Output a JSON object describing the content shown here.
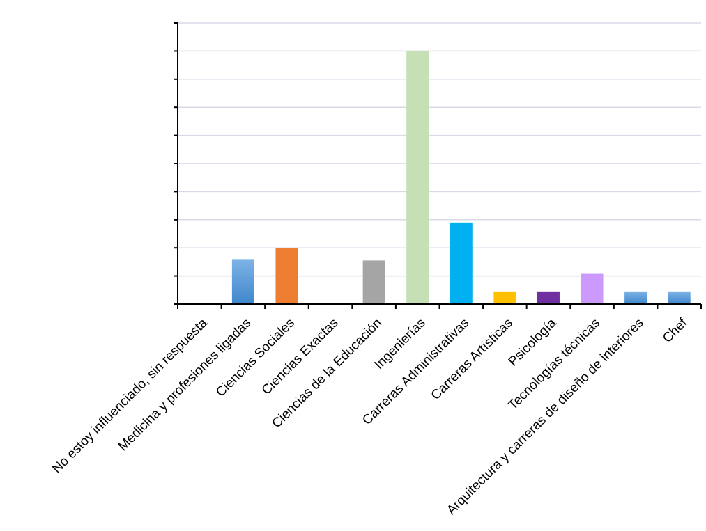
{
  "chart_data": {
    "type": "bar",
    "title": "",
    "xlabel": "",
    "ylabel": "",
    "ylim": [
      0,
      10
    ],
    "grid": true,
    "y_tick_labels_shown": false,
    "categories": [
      "No estoy influenciado, sin respuesta",
      "Medicina y profesiones ligadas",
      "Ciencias Sociales",
      "Ciencias Exactas",
      "Ciencias de la Educación",
      "Ingenierías",
      "Carreras Administrativas",
      "Carreras Artísticas",
      "Psicología",
      "Tecnologías técnicas",
      "Arquitectura y carreras de diseño de interiores",
      "Chef"
    ],
    "values": [
      0,
      1.6,
      2.0,
      0,
      1.55,
      9.0,
      2.9,
      0.45,
      0.45,
      1.1,
      0.45,
      0.45
    ],
    "colors": [
      "#5b9bd5",
      "#5b9bd5",
      "#ed7d31",
      "#a5a5a5",
      "#a5a5a5",
      "#c5e0b4",
      "#00b0f0",
      "#ffc000",
      "#7030a0",
      "#cc99ff",
      "#5b9bd5",
      "#5b9bd5"
    ],
    "gradient": [
      false,
      true,
      false,
      false,
      false,
      false,
      false,
      false,
      false,
      false,
      true,
      true
    ]
  }
}
